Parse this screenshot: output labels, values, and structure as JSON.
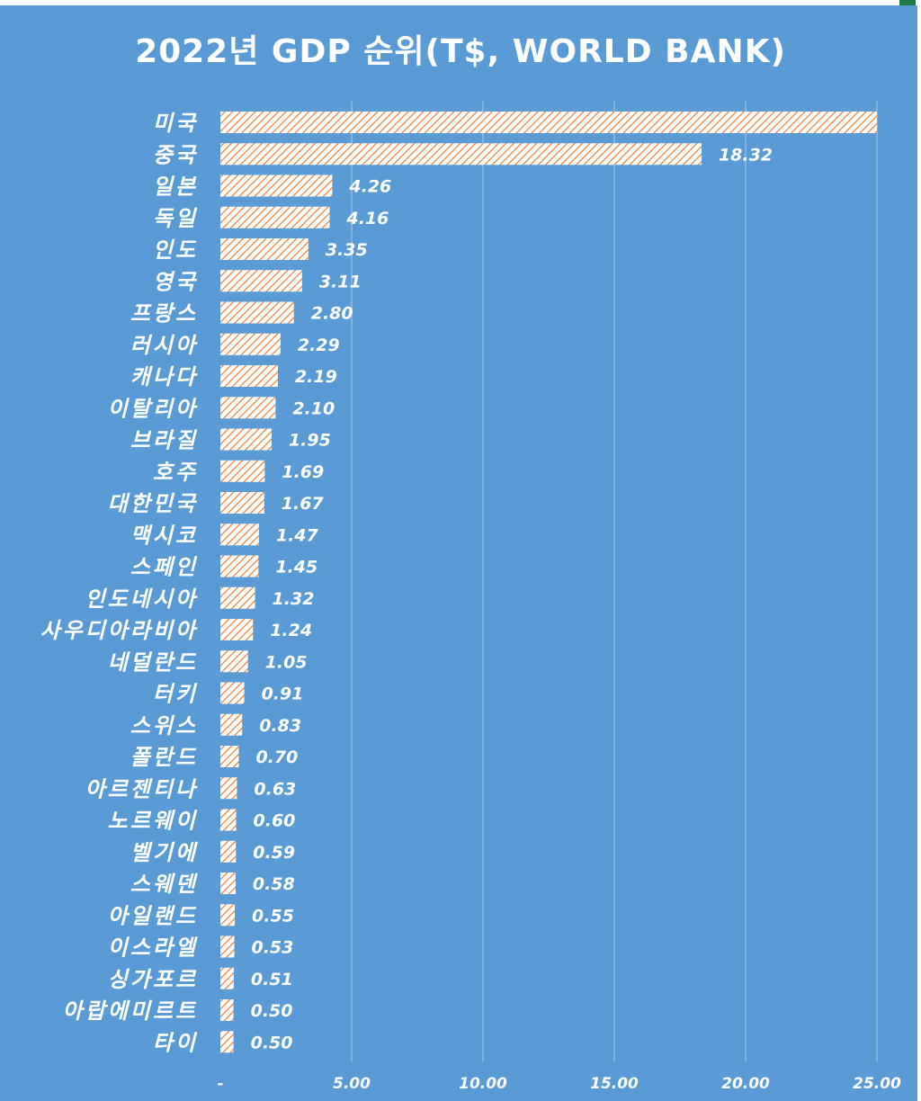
{
  "colors": {
    "background": "#5b9bd5",
    "bar_fill": "#ffffff",
    "bar_hatch": "#ed7d31",
    "grid": "#9cc3e6",
    "text": "#ffffff"
  },
  "chart_data": {
    "type": "bar",
    "orientation": "horizontal",
    "title": "2022년 GDP 순위(T$, WORLD BANK)",
    "xlabel": "",
    "ylabel": "",
    "xlim": [
      0,
      25
    ],
    "x_ticks": [
      0,
      5,
      10,
      15,
      20,
      25
    ],
    "x_tick_labels": [
      "-",
      "5.00",
      "10.00",
      "15.00",
      "20.00",
      "25.00"
    ],
    "grid": "vertical",
    "categories": [
      "미국",
      "중국",
      "일본",
      "독일",
      "인도",
      "영국",
      "프랑스",
      "러시아",
      "캐나다",
      "이탈리아",
      "브라질",
      "호주",
      "대한민국",
      "맥시코",
      "스페인",
      "인도네시아",
      "사우디아라비아",
      "네덜란드",
      "터키",
      "스위스",
      "폴란드",
      "아르젠티나",
      "노르웨이",
      "벨기에",
      "스웨덴",
      "아일랜드",
      "이스라엘",
      "싱가포르",
      "아랍에미르트",
      "타이"
    ],
    "values": [
      25.46,
      18.32,
      4.26,
      4.16,
      3.35,
      3.11,
      2.8,
      2.29,
      2.19,
      2.1,
      1.95,
      1.69,
      1.67,
      1.47,
      1.45,
      1.32,
      1.24,
      1.05,
      0.91,
      0.83,
      0.7,
      0.63,
      0.6,
      0.59,
      0.58,
      0.55,
      0.53,
      0.51,
      0.5,
      0.5
    ],
    "data_labels": [
      "",
      "18.32",
      "4.26",
      "4.16",
      "3.35",
      "3.11",
      "2.80",
      "2.29",
      "2.19",
      "2.10",
      "1.95",
      "1.69",
      "1.67",
      "1.47",
      "1.45",
      "1.32",
      "1.24",
      "1.05",
      "0.91",
      "0.83",
      "0.70",
      "0.63",
      "0.60",
      "0.59",
      "0.58",
      "0.55",
      "0.53",
      "0.51",
      "0.50",
      "0.50"
    ]
  }
}
